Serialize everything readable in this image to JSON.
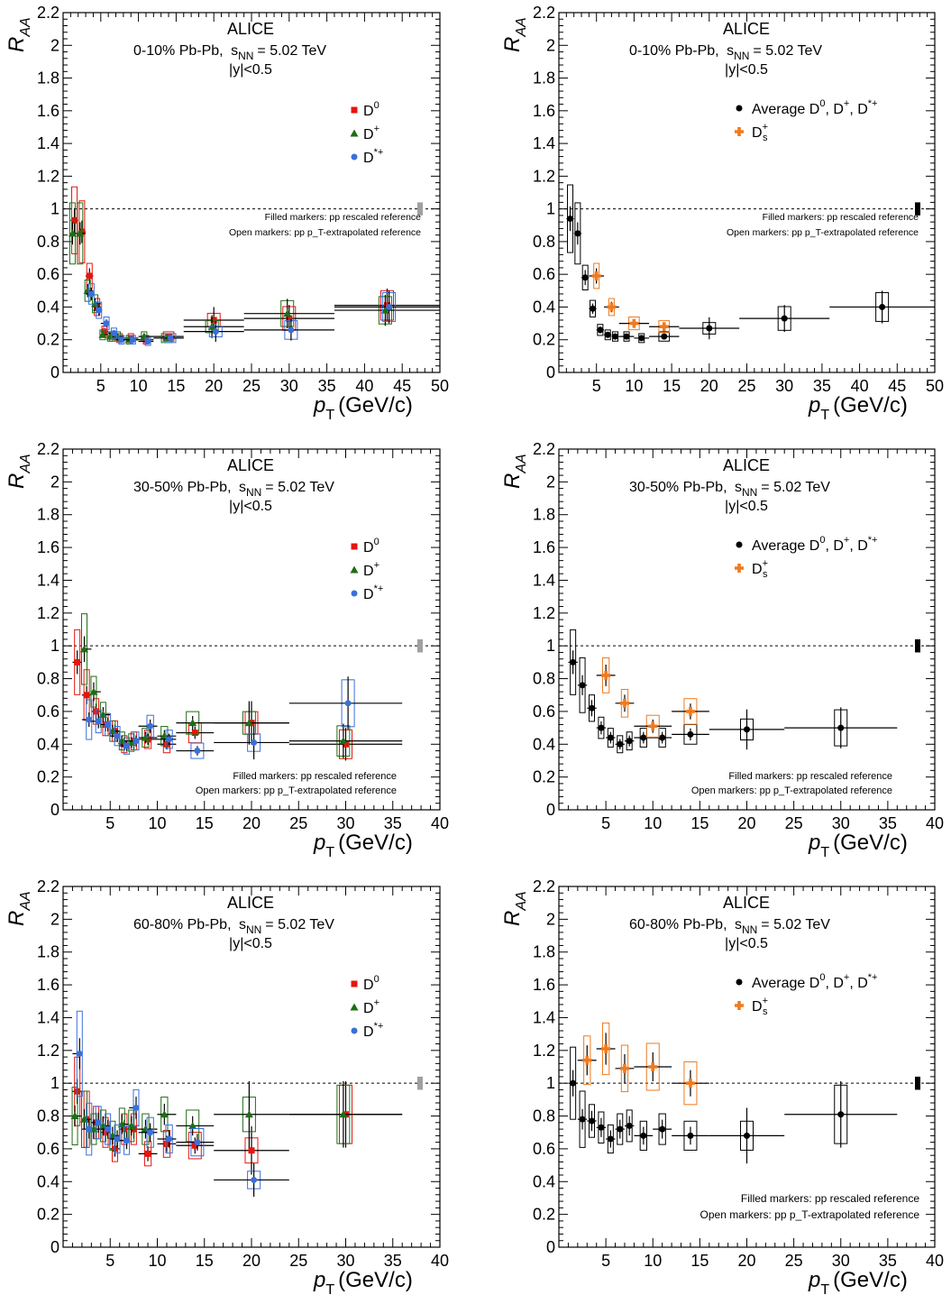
{
  "figure": {
    "experiment": "ALICE",
    "rapidity": "|y|<0.5",
    "energy": "= 5.02 TeV",
    "ylabel": "R",
    "ylabel_sub": "AA",
    "xlabel": "p",
    "xlabel_sub": "T",
    "xlabel_unit": "(GeV/c)",
    "note_filled": "Filled markers: pp rescaled reference",
    "note_open": "Open markers: pp p_T-extrapolated reference",
    "colors": {
      "D0": "#e8140c",
      "Dplus": "#1e6e14",
      "Dstar": "#3a6fdc",
      "Ds": "#f07a1e",
      "avg": "#000000",
      "norm_box_left": "#a0a0a0",
      "norm_box_right": "#000000"
    }
  },
  "chart_data": [
    {
      "type": "scatter",
      "panel": "top-left",
      "centrality": "0-10% Pb-Pb,",
      "ylim": [
        0,
        2.2
      ],
      "xlim": [
        0,
        50
      ],
      "xticks": [
        5,
        10,
        15,
        20,
        25,
        30,
        35,
        40,
        45,
        50
      ],
      "yticks": [
        0,
        0.2,
        0.4,
        0.6,
        0.8,
        1,
        1.2,
        1.4,
        1.6,
        1.8,
        2,
        2.2
      ],
      "legend": [
        "D0",
        "D+",
        "D*+"
      ],
      "series": [
        {
          "name": "D0",
          "x": [
            1.5,
            2.5,
            3.5,
            4.5,
            5.5,
            6.5,
            7.5,
            9,
            11,
            14,
            20,
            30,
            43
          ],
          "y": [
            0.93,
            0.86,
            0.59,
            0.4,
            0.25,
            0.22,
            0.21,
            0.21,
            0.2,
            0.22,
            0.32,
            0.33,
            0.41
          ]
        },
        {
          "name": "D+",
          "x": [
            1.5,
            2.5,
            3.5,
            4.5,
            5.5,
            6.5,
            7.5,
            9,
            11,
            14,
            20,
            30,
            43
          ],
          "y": [
            0.85,
            0.85,
            0.5,
            0.42,
            0.23,
            0.22,
            0.22,
            0.2,
            0.22,
            0.21,
            0.28,
            0.36,
            0.38
          ]
        },
        {
          "name": "D*+",
          "x": [
            3.5,
            4.5,
            5.5,
            6.5,
            7.5,
            9,
            11,
            14,
            20,
            30,
            43
          ],
          "y": [
            0.48,
            0.38,
            0.3,
            0.24,
            0.2,
            0.2,
            0.19,
            0.21,
            0.25,
            0.26,
            0.4
          ]
        }
      ]
    },
    {
      "type": "scatter",
      "panel": "top-right",
      "centrality": "0-10% Pb-Pb,",
      "ylim": [
        0,
        2.2
      ],
      "xlim": [
        0,
        50
      ],
      "xticks": [
        5,
        10,
        15,
        20,
        25,
        30,
        35,
        40,
        45,
        50
      ],
      "yticks": [
        0,
        0.2,
        0.4,
        0.6,
        0.8,
        1,
        1.2,
        1.4,
        1.6,
        1.8,
        2,
        2.2
      ],
      "legend": [
        "Average D0, D+, D*+",
        "Ds+"
      ],
      "series": [
        {
          "name": "Average D0, D+, D*+",
          "x": [
            1.5,
            2.5,
            3.5,
            4.5,
            5.5,
            6.5,
            7.5,
            9,
            11,
            14,
            20,
            30,
            43
          ],
          "y": [
            0.94,
            0.85,
            0.58,
            0.39,
            0.26,
            0.23,
            0.22,
            0.22,
            0.21,
            0.22,
            0.27,
            0.33,
            0.4
          ]
        },
        {
          "name": "Ds+",
          "x": [
            5,
            7,
            10,
            14
          ],
          "y": [
            0.59,
            0.4,
            0.3,
            0.28
          ]
        }
      ]
    },
    {
      "type": "scatter",
      "panel": "middle-left",
      "centrality": "30-50% Pb-Pb,",
      "ylim": [
        0,
        2.2
      ],
      "xlim": [
        0,
        40
      ],
      "xticks": [
        5,
        10,
        15,
        20,
        25,
        30,
        35,
        40
      ],
      "yticks": [
        0,
        0.2,
        0.4,
        0.6,
        0.8,
        1,
        1.2,
        1.4,
        1.6,
        1.8,
        2,
        2.2
      ],
      "legend": [
        "D0",
        "D+",
        "D*+"
      ],
      "series": [
        {
          "name": "D0",
          "x": [
            1.5,
            2.5,
            3.5,
            4.5,
            5.5,
            6.5,
            7.5,
            9,
            11,
            14,
            20,
            30
          ],
          "y": [
            0.9,
            0.7,
            0.6,
            0.52,
            0.48,
            0.4,
            0.42,
            0.43,
            0.4,
            0.47,
            0.53,
            0.4
          ]
        },
        {
          "name": "D+",
          "x": [
            2.5,
            3.5,
            4.5,
            5.5,
            6.5,
            7.5,
            9,
            11,
            14,
            20,
            30
          ],
          "y": [
            0.98,
            0.72,
            0.58,
            0.48,
            0.42,
            0.41,
            0.44,
            0.45,
            0.53,
            0.53,
            0.42
          ]
        },
        {
          "name": "D*+",
          "x": [
            2.5,
            3.5,
            4.5,
            5.5,
            6.5,
            7.5,
            9,
            11,
            14,
            20,
            30
          ],
          "y": [
            0.55,
            0.54,
            0.52,
            0.45,
            0.39,
            0.42,
            0.51,
            0.43,
            0.36,
            0.41,
            0.65
          ]
        }
      ]
    },
    {
      "type": "scatter",
      "panel": "middle-right",
      "centrality": "30-50% Pb-Pb,",
      "ylim": [
        0,
        2.2
      ],
      "xlim": [
        0,
        40
      ],
      "xticks": [
        5,
        10,
        15,
        20,
        25,
        30,
        35,
        40
      ],
      "yticks": [
        0,
        0.2,
        0.4,
        0.6,
        0.8,
        1,
        1.2,
        1.4,
        1.6,
        1.8,
        2,
        2.2
      ],
      "legend": [
        "Average D0, D+, D*+",
        "Ds+"
      ],
      "series": [
        {
          "name": "Average D0, D+, D*+",
          "x": [
            1.5,
            2.5,
            3.5,
            4.5,
            5.5,
            6.5,
            7.5,
            9,
            11,
            14,
            20,
            30
          ],
          "y": [
            0.9,
            0.76,
            0.62,
            0.5,
            0.44,
            0.4,
            0.42,
            0.44,
            0.44,
            0.46,
            0.49,
            0.5
          ]
        },
        {
          "name": "Ds+",
          "x": [
            5,
            7,
            10,
            14
          ],
          "y": [
            0.82,
            0.65,
            0.51,
            0.6
          ]
        }
      ]
    },
    {
      "type": "scatter",
      "panel": "bottom-left",
      "centrality": "60-80% Pb-Pb,",
      "ylim": [
        0,
        2.2
      ],
      "xlim": [
        0,
        40
      ],
      "xticks": [
        5,
        10,
        15,
        20,
        25,
        30,
        35,
        40
      ],
      "yticks": [
        0,
        0.2,
        0.4,
        0.6,
        0.8,
        1,
        1.2,
        1.4,
        1.6,
        1.8,
        2,
        2.2
      ],
      "legend": [
        "D0",
        "D+",
        "D*+"
      ],
      "series": [
        {
          "name": "D0",
          "x": [
            1.5,
            2.5,
            3.5,
            4.5,
            5.5,
            6.5,
            7.5,
            9,
            11,
            14,
            20,
            30
          ],
          "y": [
            0.95,
            0.78,
            0.76,
            0.7,
            0.6,
            0.72,
            0.72,
            0.57,
            0.63,
            0.62,
            0.59,
            0.81
          ]
        },
        {
          "name": "D+",
          "x": [
            1.5,
            2.5,
            3.5,
            4.5,
            5.5,
            6.5,
            7.5,
            9,
            11,
            14,
            20,
            30
          ],
          "y": [
            0.8,
            0.78,
            0.72,
            0.74,
            0.68,
            0.75,
            0.74,
            0.72,
            0.81,
            0.74,
            0.81,
            0.81
          ]
        },
        {
          "name": "D*+",
          "x": [
            1.5,
            2.5,
            3.5,
            4.5,
            5.5,
            6.5,
            7.5,
            9,
            11,
            14,
            20
          ],
          "y": [
            1.18,
            0.72,
            0.76,
            0.72,
            0.66,
            0.65,
            0.85,
            0.7,
            0.66,
            0.64,
            0.41
          ]
        }
      ]
    },
    {
      "type": "scatter",
      "panel": "bottom-right",
      "centrality": "60-80% Pb-Pb,",
      "ylim": [
        0,
        2.2
      ],
      "xlim": [
        0,
        40
      ],
      "xticks": [
        5,
        10,
        15,
        20,
        25,
        30,
        35,
        40
      ],
      "yticks": [
        0,
        0.2,
        0.4,
        0.6,
        0.8,
        1,
        1.2,
        1.4,
        1.6,
        1.8,
        2,
        2.2
      ],
      "legend": [
        "Average D0, D+, D*+",
        "Ds+"
      ],
      "series": [
        {
          "name": "Average D0, D+, D*+",
          "x": [
            1.5,
            2.5,
            3.5,
            4.5,
            5.5,
            6.5,
            7.5,
            9,
            11,
            14,
            20,
            30
          ],
          "y": [
            1.0,
            0.78,
            0.77,
            0.73,
            0.66,
            0.72,
            0.74,
            0.68,
            0.72,
            0.68,
            0.68,
            0.81
          ]
        },
        {
          "name": "Ds+",
          "x": [
            3,
            5,
            7,
            10,
            14
          ],
          "y": [
            1.14,
            1.21,
            1.09,
            1.1,
            1.0
          ]
        }
      ]
    }
  ]
}
